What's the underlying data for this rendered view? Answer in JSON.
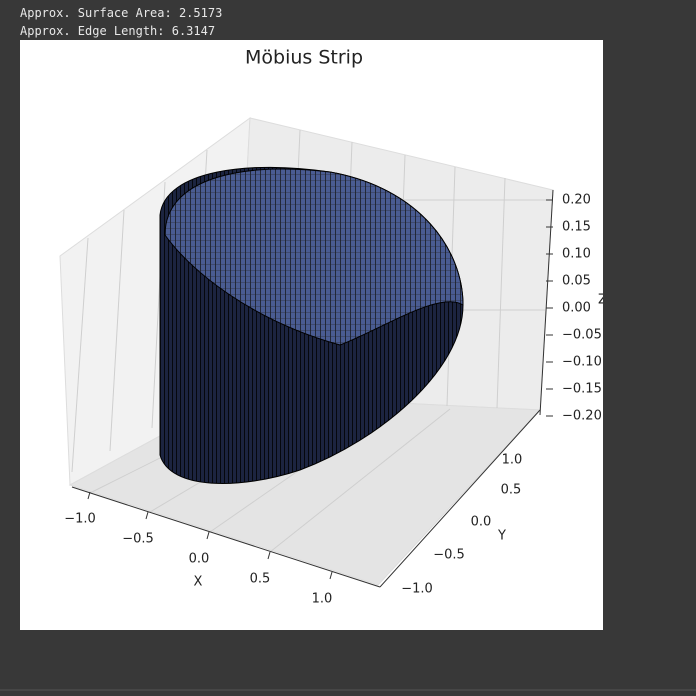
{
  "output_lines": [
    "Approx. Surface Area: 2.5173",
    "Approx. Edge Length: 6.3147"
  ],
  "figure": {
    "title": "Möbius Strip",
    "x_label": "X",
    "y_label": "Y",
    "z_label": "Z",
    "x_ticks": [
      "−1.0",
      "−0.5",
      "0.0",
      "0.5",
      "1.0"
    ],
    "y_ticks": [
      "1.0",
      "0.5",
      "0.0",
      "−0.5",
      "−1.0"
    ],
    "z_ticks": [
      "0.20",
      "0.15",
      "0.10",
      "0.05",
      "0.00",
      "−0.05",
      "−0.10",
      "−0.15",
      "−0.20"
    ]
  }
}
